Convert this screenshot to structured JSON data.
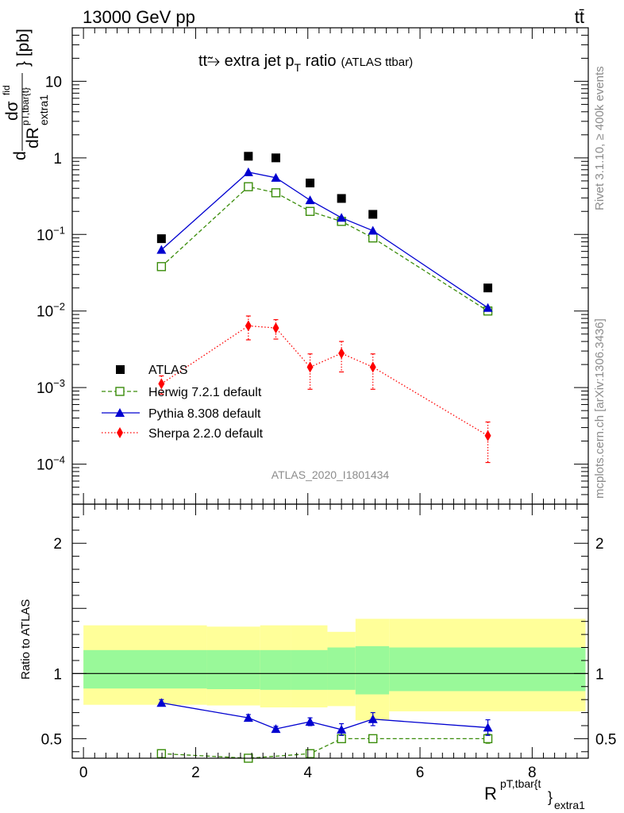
{
  "header": {
    "energy_label": "13000 GeV pp",
    "process_label": "tt̄"
  },
  "side_labels": {
    "rivet": "Rivet 3.1.10, ≥ 400k events",
    "mcplots": "mcplots.cern.ch [arXiv:1306.3436]"
  },
  "chart_data": [
    {
      "type": "scatter",
      "yscale": "log",
      "title": "tt⥲ extra jet p",
      "title_sub": "T",
      "title_suffix": " ratio",
      "title_note": "(ATLAS ttbar)",
      "ylabel": {
        "prefix": "d",
        "num": "dσ",
        "num_sup": "fid",
        "den": "dR",
        "den_sup": "pT,tbar{t}",
        "den_sub": "extra1",
        "suffix": "} [pb]"
      },
      "analysis_tag": "ATLAS_2020_I1801434",
      "xlim": [
        -0.2,
        9.0
      ],
      "ylim": [
        3e-05,
        50
      ],
      "ytick_labels": [
        {
          "value": 10,
          "mant": "10",
          "exp": ""
        },
        {
          "value": 1,
          "mant": "1",
          "exp": ""
        },
        {
          "value": 0.1,
          "mant": "10",
          "exp": "−1"
        },
        {
          "value": 0.01,
          "mant": "10",
          "exp": "−2"
        },
        {
          "value": 0.001,
          "mant": "10",
          "exp": "−3"
        },
        {
          "value": 0.0001,
          "mant": "10",
          "exp": "−4"
        }
      ],
      "series": [
        {
          "name": "ATLAS",
          "color": "#000000",
          "style": "square-filled",
          "x": [
            1.39,
            2.94,
            3.43,
            4.04,
            4.6,
            5.16,
            7.21
          ],
          "y": [
            0.088,
            1.05,
            1.0,
            0.47,
            0.295,
            0.183,
            0.02
          ]
        },
        {
          "name": "Herwig 7.2.1 default",
          "color": "#3a8c0a",
          "style": "square-open-dashed",
          "x": [
            1.39,
            2.94,
            3.43,
            4.04,
            4.6,
            5.16,
            7.21
          ],
          "y": [
            0.038,
            0.42,
            0.35,
            0.2,
            0.148,
            0.09,
            0.01
          ]
        },
        {
          "name": "Pythia 8.308 default",
          "color": "#0000d0",
          "style": "triangle-solid",
          "x": [
            1.39,
            2.94,
            3.43,
            4.04,
            4.6,
            5.16,
            7.21
          ],
          "y": [
            0.063,
            0.65,
            0.55,
            0.28,
            0.165,
            0.112,
            0.011
          ]
        },
        {
          "name": "Sherpa 2.2.0 default",
          "color": "#ff0000",
          "style": "diamond-dotted",
          "x": [
            1.39,
            2.94,
            3.43,
            4.04,
            4.6,
            5.16,
            7.21
          ],
          "y": [
            0.00112,
            0.0064,
            0.006,
            0.00185,
            0.0028,
            0.00185,
            0.000235
          ],
          "y_err_up": [
            0.0003,
            0.0022,
            0.0017,
            0.0009,
            0.0012,
            0.0009,
            0.00012
          ],
          "y_err_down": [
            0.0003,
            0.0022,
            0.0017,
            0.0009,
            0.0012,
            0.0009,
            0.00013
          ]
        }
      ]
    },
    {
      "type": "scatter",
      "ylabel": "Ratio to ATLAS",
      "xlabel": "R",
      "xlabel_sup": "pT,tbar{t",
      "xlabel_brace": "}",
      "xlabel_sub": "extra1",
      "xlim": [
        -0.2,
        9.0
      ],
      "ylim": [
        0.35,
        2.3
      ],
      "xtick_labels": [
        "0",
        "2",
        "4",
        "6",
        "8"
      ],
      "ytick_labels": [
        "0.5",
        "1",
        "2"
      ],
      "reference_line": 1,
      "bands": [
        {
          "x0": 0.0,
          "x1": 2.2,
          "inner": [
            0.885,
            1.18
          ],
          "outer": [
            0.76,
            1.37
          ]
        },
        {
          "x0": 2.2,
          "x1": 3.15,
          "inner": [
            0.88,
            1.18
          ],
          "outer": [
            0.755,
            1.36
          ]
        },
        {
          "x0": 3.15,
          "x1": 3.7,
          "inner": [
            0.875,
            1.18
          ],
          "outer": [
            0.74,
            1.37
          ]
        },
        {
          "x0": 3.7,
          "x1": 4.35,
          "inner": [
            0.875,
            1.18
          ],
          "outer": [
            0.74,
            1.37
          ]
        },
        {
          "x0": 4.35,
          "x1": 4.85,
          "inner": [
            0.875,
            1.2
          ],
          "outer": [
            0.75,
            1.32
          ]
        },
        {
          "x0": 4.85,
          "x1": 5.45,
          "inner": [
            0.84,
            1.21
          ],
          "outer": [
            0.64,
            1.42
          ]
        },
        {
          "x0": 5.45,
          "x1": 8.95,
          "inner": [
            0.865,
            1.2
          ],
          "outer": [
            0.71,
            1.42
          ]
        }
      ],
      "series": [
        {
          "name": "Herwig 7.2.1 default",
          "color": "#3a8c0a",
          "x": [
            1.39,
            2.94,
            4.04,
            4.6,
            5.16,
            7.21
          ],
          "y": [
            0.385,
            0.335,
            0.385,
            0.5,
            0.5,
            0.5
          ],
          "y_err": [
            0.012,
            0.01,
            0.015,
            0.02,
            0.025,
            0.035
          ]
        },
        {
          "name": "Pythia 8.308 default",
          "color": "#0000d0",
          "x": [
            1.39,
            2.94,
            3.43,
            4.04,
            4.6,
            5.16,
            7.21
          ],
          "y": [
            0.775,
            0.66,
            0.575,
            0.63,
            0.57,
            0.65,
            0.585
          ],
          "y_err": [
            0.025,
            0.025,
            0.02,
            0.03,
            0.045,
            0.05,
            0.06
          ]
        }
      ]
    }
  ]
}
